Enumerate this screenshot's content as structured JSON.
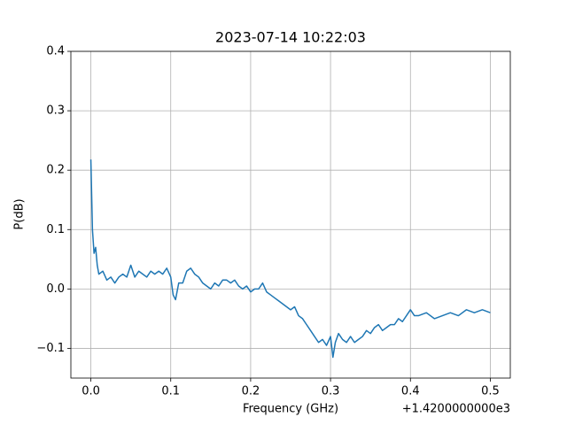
{
  "chart_data": {
    "type": "line",
    "title": "2023-07-14 10:22:03",
    "x_label": "Frequency (GHz)",
    "y_label": "P(dB)",
    "x_offset_label": "+1.4200000000e3",
    "x": [
      0.0,
      0.002,
      0.004,
      0.006,
      0.008,
      0.01,
      0.015,
      0.02,
      0.025,
      0.03,
      0.035,
      0.04,
      0.045,
      0.05,
      0.055,
      0.06,
      0.065,
      0.07,
      0.075,
      0.08,
      0.085,
      0.09,
      0.095,
      0.1,
      0.103,
      0.106,
      0.11,
      0.115,
      0.12,
      0.125,
      0.13,
      0.135,
      0.14,
      0.145,
      0.15,
      0.155,
      0.16,
      0.165,
      0.17,
      0.175,
      0.18,
      0.185,
      0.19,
      0.195,
      0.2,
      0.205,
      0.21,
      0.215,
      0.22,
      0.225,
      0.23,
      0.235,
      0.24,
      0.245,
      0.25,
      0.255,
      0.26,
      0.265,
      0.27,
      0.275,
      0.28,
      0.285,
      0.29,
      0.295,
      0.3,
      0.303,
      0.306,
      0.31,
      0.315,
      0.32,
      0.325,
      0.33,
      0.335,
      0.34,
      0.345,
      0.35,
      0.355,
      0.36,
      0.365,
      0.37,
      0.375,
      0.38,
      0.385,
      0.39,
      0.395,
      0.4,
      0.405,
      0.41,
      0.42,
      0.43,
      0.44,
      0.45,
      0.46,
      0.47,
      0.48,
      0.49,
      0.5
    ],
    "series": [
      {
        "color": "#1f77b4",
        "values": [
          0.218,
          0.1,
          0.06,
          0.07,
          0.04,
          0.025,
          0.03,
          0.015,
          0.02,
          0.01,
          0.02,
          0.025,
          0.02,
          0.04,
          0.02,
          0.03,
          0.025,
          0.02,
          0.03,
          0.025,
          0.03,
          0.025,
          0.035,
          0.02,
          -0.01,
          -0.018,
          0.01,
          0.01,
          0.03,
          0.035,
          0.025,
          0.02,
          0.01,
          0.005,
          0.0,
          0.01,
          0.005,
          0.015,
          0.015,
          0.01,
          0.015,
          0.005,
          0.0,
          0.005,
          -0.005,
          0.0,
          0.0,
          0.01,
          -0.005,
          -0.01,
          -0.015,
          -0.02,
          -0.025,
          -0.03,
          -0.035,
          -0.03,
          -0.045,
          -0.05,
          -0.06,
          -0.07,
          -0.08,
          -0.09,
          -0.085,
          -0.095,
          -0.08,
          -0.115,
          -0.09,
          -0.075,
          -0.085,
          -0.09,
          -0.08,
          -0.09,
          -0.085,
          -0.08,
          -0.07,
          -0.075,
          -0.065,
          -0.06,
          -0.07,
          -0.065,
          -0.06,
          -0.06,
          -0.05,
          -0.055,
          -0.045,
          -0.035,
          -0.045,
          -0.045,
          -0.04,
          -0.05,
          -0.045,
          -0.04,
          -0.045,
          -0.035,
          -0.04,
          -0.035,
          -0.04
        ]
      }
    ],
    "xlim": [
      -0.025,
      0.525
    ],
    "ylim": [
      -0.15,
      0.4
    ],
    "xticks": [
      {
        "value": 0,
        "label": "0.0"
      },
      {
        "value": 0.1,
        "label": "0.1"
      },
      {
        "value": 0.2,
        "label": "0.2"
      },
      {
        "value": 0.3,
        "label": "0.3"
      },
      {
        "value": 0.4,
        "label": "0.4"
      },
      {
        "value": 0.5,
        "label": "0.5"
      }
    ],
    "yticks": [
      {
        "value": -0.1,
        "label": "−0.1"
      },
      {
        "value": 0,
        "label": "0.0"
      },
      {
        "value": 0.1,
        "label": "0.1"
      },
      {
        "value": 0.2,
        "label": "0.2"
      },
      {
        "value": 0.3,
        "label": "0.3"
      },
      {
        "value": 0.4,
        "label": "0.4"
      }
    ],
    "grid": true
  }
}
